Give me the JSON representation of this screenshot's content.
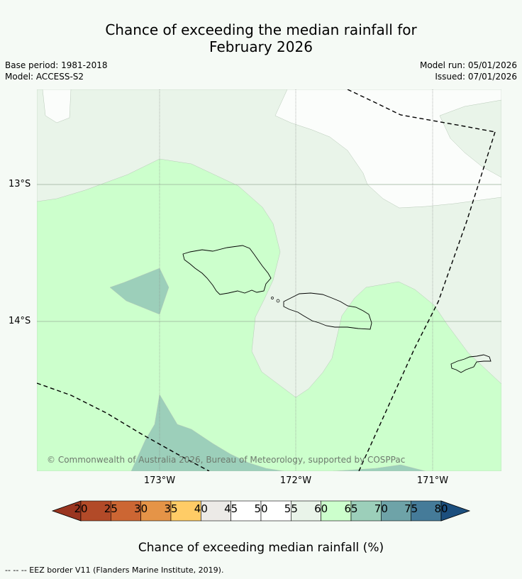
{
  "header": {
    "title_line1": "Chance of exceeding the median rainfall for",
    "title_line2": "February 2026",
    "base_period": "Base period: 1981-2018",
    "model": "Model: ACCESS-S2",
    "model_run": "Model run: 05/01/2026",
    "issued": "Issued: 07/01/2026"
  },
  "map": {
    "lat_labels": [
      "13°S",
      "14°S"
    ],
    "lon_labels": [
      "173°W",
      "172°W",
      "171°W"
    ],
    "copyright": "© Commonwealth of Australia 2026, Bureau of Meteorology, supported by COSPPac",
    "colors": {
      "class_50_55": "#fbfdfb",
      "class_55_60": "#e9f4e9",
      "class_60_65": "#ccffcc",
      "class_65_70": "#9ccfba",
      "class_70_75": "#6ea3a8",
      "eez_line": "#000000"
    }
  },
  "colorbar": {
    "ticks": [
      "20",
      "25",
      "30",
      "35",
      "40",
      "45",
      "50",
      "55",
      "60",
      "65",
      "70",
      "75",
      "80"
    ],
    "colors": [
      "#b24a28",
      "#cc6633",
      "#e59447",
      "#ffcc66",
      "#eceae7",
      "#ffffff",
      "#ffffff",
      "#e9f4e9",
      "#ccffcc",
      "#9ccfba",
      "#6ea3a8",
      "#457b99"
    ],
    "under_color": "#9a3520",
    "over_color": "#1c4f7e",
    "label": "Chance of exceeding median rainfall (%)"
  },
  "footnote": "--  --  -- EEZ border V11 (Flanders Marine Institute, 2019)."
}
